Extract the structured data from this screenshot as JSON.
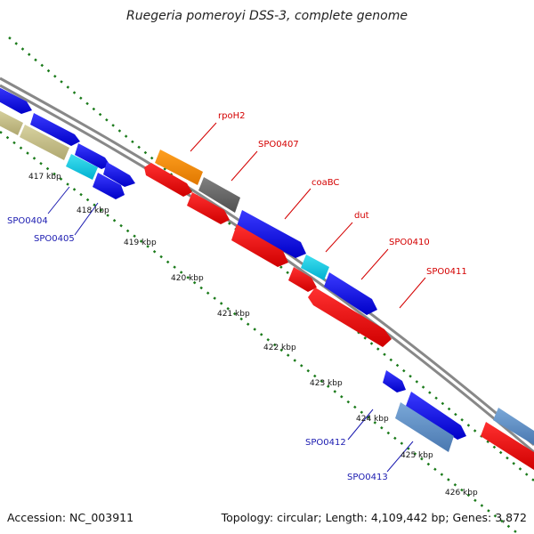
{
  "title": "Ruegeria pomeroyi DSS-3, complete genome",
  "footer": {
    "accession": "Accession: NC_003911",
    "topology": "Topology: circular; Length: 4,109,442 bp; Genes: 3,872"
  },
  "scale_ticks": [
    "417 kbp",
    "418 kbp",
    "419 kbp",
    "420 kbp",
    "421 kbp",
    "422 kbp",
    "423 kbp",
    "424 kbp",
    "425 kbp",
    "426 kbp"
  ],
  "gene_labels_forward": [
    "rpoH2",
    "SPO0407",
    "coaBC",
    "dut",
    "SPO0410",
    "SPO0411"
  ],
  "gene_labels_reverse": [
    "SPO0404",
    "SPO0405",
    "SPO0412",
    "SPO0413"
  ],
  "colors": {
    "forward_label": "#d40000",
    "reverse_label": "#1a1ab0",
    "backbone": "#888888",
    "ticks": "#1a7a1a"
  }
}
